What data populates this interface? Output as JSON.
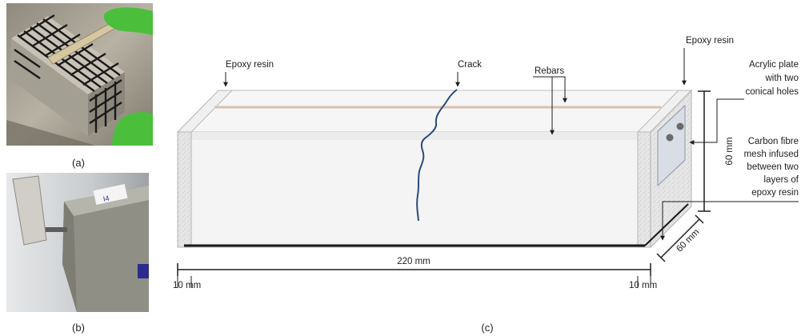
{
  "captions": {
    "a": "(a)",
    "b": "(b)",
    "c": "(c)"
  },
  "labels": {
    "epoxy_left": "Epoxy resin",
    "epoxy_right": "Epoxy resin",
    "crack": "Crack",
    "rebars": "Rebars",
    "acrylic": [
      "Acrylic plate",
      "with two",
      "conical holes"
    ],
    "carbon": [
      "Carbon fibre",
      "mesh infused",
      "between two",
      "layers of",
      "epoxy resin"
    ]
  },
  "dimensions": {
    "length": "220 mm",
    "height": "60 mm",
    "width": "60 mm",
    "end_left": "10 mm",
    "end_right": "10 mm"
  },
  "photo_b_marks": {
    "tag": "I4"
  },
  "colors": {
    "epoxy": "#e3e3e3",
    "concrete": "#f3f3f3",
    "rebar": "#d8c2b0",
    "crack": "#2a4a7a",
    "mesh": "#1a1a1a",
    "glove": "#4bbf3c"
  }
}
